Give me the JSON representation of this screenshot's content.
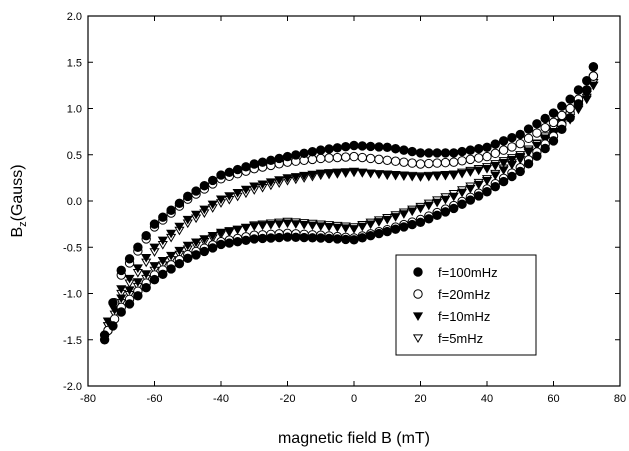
{
  "chart_data": {
    "type": "scatter",
    "xlabel": "magnetic field B (mT)",
    "ylabel_main": "B",
    "ylabel_sub": "z",
    "ylabel_tail": "(Gauss)",
    "xlim": [
      -80,
      80
    ],
    "ylim": [
      -2.0,
      2.0
    ],
    "xticks": [
      -80,
      -60,
      -40,
      -20,
      0,
      20,
      40,
      60,
      80
    ],
    "yticks": [
      -2.0,
      -1.5,
      -1.0,
      -0.5,
      0.0,
      0.5,
      1.0,
      1.5,
      2.0
    ],
    "xtick_labels": [
      "-80",
      "-60",
      "-40",
      "-20",
      "0",
      "20",
      "40",
      "60",
      "80"
    ],
    "ytick_labels": [
      "-2.0",
      "-1.5",
      "-1.0",
      "-0.5",
      "0.0",
      "0.5",
      "1.0",
      "1.5",
      "2.0"
    ],
    "grid": false,
    "legend_position": "bottom-right",
    "series": [
      {
        "name": "f=100mHz",
        "marker": "filled-circle",
        "lower": {
          "x": [
            -75,
            -70,
            -60,
            -50,
            -40,
            -30,
            -20,
            -10,
            0,
            10,
            20,
            30,
            40,
            50,
            60,
            65,
            70,
            72
          ],
          "y": [
            -1.5,
            -1.2,
            -0.85,
            -0.62,
            -0.47,
            -0.41,
            -0.39,
            -0.4,
            -0.42,
            -0.33,
            -0.23,
            -0.08,
            0.1,
            0.32,
            0.65,
            0.9,
            1.2,
            1.45
          ]
        },
        "upper": {
          "x": [
            72,
            70,
            65,
            60,
            50,
            40,
            30,
            20,
            10,
            0,
            -10,
            -20,
            -30,
            -40,
            -50,
            -60,
            -70,
            -75
          ],
          "y": [
            1.45,
            1.3,
            1.1,
            0.95,
            0.72,
            0.58,
            0.52,
            0.52,
            0.58,
            0.6,
            0.55,
            0.48,
            0.4,
            0.28,
            0.05,
            -0.25,
            -0.75,
            -1.45
          ]
        }
      },
      {
        "name": "f=20mHz",
        "marker": "open-circle",
        "lower": {
          "x": [
            -74,
            -70,
            -60,
            -50,
            -40,
            -30,
            -20,
            -10,
            0,
            10,
            20,
            30,
            40,
            50,
            60,
            65,
            70,
            72
          ],
          "y": [
            -1.4,
            -1.15,
            -0.8,
            -0.58,
            -0.44,
            -0.37,
            -0.35,
            -0.37,
            -0.4,
            -0.31,
            -0.2,
            -0.05,
            0.13,
            0.36,
            0.7,
            0.95,
            1.2,
            1.35
          ]
        },
        "upper": {
          "x": [
            72,
            70,
            65,
            60,
            50,
            40,
            30,
            20,
            10,
            0,
            -10,
            -20,
            -30,
            -40,
            -50,
            -60,
            -70,
            -74
          ],
          "y": [
            1.35,
            1.2,
            1.0,
            0.85,
            0.62,
            0.48,
            0.42,
            0.4,
            0.44,
            0.48,
            0.46,
            0.42,
            0.35,
            0.24,
            0.02,
            -0.28,
            -0.8,
            -1.4
          ]
        }
      },
      {
        "name": "f=10mHz",
        "marker": "filled-triangle-down",
        "lower": {
          "x": [
            -74,
            -70,
            -60,
            -50,
            -40,
            -30,
            -20,
            -10,
            0,
            10,
            20,
            30,
            40,
            50,
            60,
            65,
            70,
            72
          ],
          "y": [
            -1.3,
            -1.05,
            -0.7,
            -0.48,
            -0.34,
            -0.27,
            -0.24,
            -0.27,
            -0.3,
            -0.2,
            -0.08,
            0.05,
            0.22,
            0.45,
            0.75,
            0.95,
            1.15,
            1.25
          ]
        },
        "upper": {
          "x": [
            72,
            70,
            65,
            60,
            50,
            40,
            30,
            20,
            10,
            0,
            -10,
            -20,
            -30,
            -40,
            -50,
            -60,
            -70,
            -74
          ],
          "y": [
            1.25,
            1.1,
            0.88,
            0.72,
            0.48,
            0.35,
            0.28,
            0.26,
            0.28,
            0.32,
            0.3,
            0.25,
            0.16,
            0.02,
            -0.2,
            -0.5,
            -0.95,
            -1.3
          ]
        }
      },
      {
        "name": "f=5mHz",
        "marker": "open-triangle-down",
        "lower": {
          "x": [
            -74,
            -70,
            -60,
            -50,
            -40,
            -30,
            -20,
            -10,
            0,
            10,
            20,
            30,
            40,
            50,
            60,
            65,
            70,
            72
          ],
          "y": [
            -1.35,
            -1.1,
            -0.75,
            -0.52,
            -0.36,
            -0.26,
            -0.22,
            -0.25,
            -0.28,
            -0.18,
            -0.06,
            0.08,
            0.24,
            0.47,
            0.78,
            0.98,
            1.18,
            1.28
          ]
        },
        "upper": {
          "x": [
            72,
            70,
            65,
            60,
            50,
            40,
            30,
            20,
            10,
            0,
            -10,
            -20,
            -30,
            -40,
            -50,
            -60,
            -70,
            -74
          ],
          "y": [
            1.28,
            1.12,
            0.9,
            0.74,
            0.5,
            0.37,
            0.29,
            0.27,
            0.29,
            0.31,
            0.28,
            0.22,
            0.12,
            -0.02,
            -0.24,
            -0.55,
            -1.0,
            -1.35
          ]
        }
      }
    ]
  }
}
